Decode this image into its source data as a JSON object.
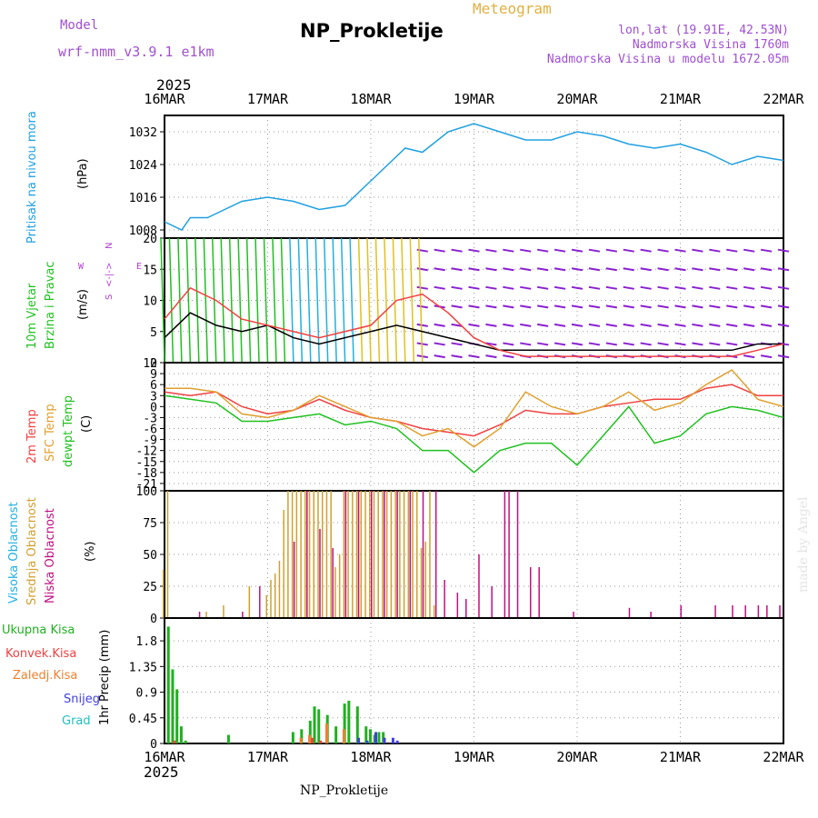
{
  "header": {
    "model_label": "Model",
    "model_name": "wrf-nmm_v3.9.1  e1km",
    "site_name": "NP_Prokletije",
    "product": "Meteogram",
    "lonlat": "lon,lat (19.91E, 42.53N)",
    "elevation": "Nadmorska Visina 1760m",
    "model_elevation": "Nadmorska Visina u modelu 1672.05m"
  },
  "footer": {
    "site_name": "NP_Prokletije",
    "credit": "made by Angel"
  },
  "time_axis": {
    "year": "2025",
    "ticks": [
      "16MAR",
      "17MAR",
      "18MAR",
      "19MAR",
      "20MAR",
      "21MAR",
      "22MAR"
    ]
  },
  "colors": {
    "pressure": "#20a0e0",
    "temp2m": "#f04040",
    "sfc_temp": "#e0a030",
    "dewpoint": "#20c020",
    "cloud_high": "#20b0e0",
    "cloud_mid": "#d0a030",
    "cloud_low": "#c01080",
    "precip_total": "#20b020",
    "precip_conv": "#f04040",
    "precip_frozen": "#f08030",
    "precip_snow": "#4040e0",
    "precip_hail": "#20c0c0",
    "wind_speed": "#000000",
    "wind_gust": "#f04040"
  },
  "panel_titles": {
    "pressure": [
      "Pritisak na nivou mora",
      "(hPa)"
    ],
    "wind": [
      "10m Vjetar",
      "Brzina i Pravac",
      "(m/s)"
    ],
    "compass": [
      "N",
      "<-|->",
      "S",
      "W",
      "E"
    ],
    "temp": [
      "2m Temp",
      "SFC Temp",
      "dewpt Temp",
      "(C)"
    ],
    "cloud": [
      "Visoka Oblacnost",
      "Srednja Oblacnost",
      "Niska Oblacnost",
      "(%)"
    ],
    "precip": [
      "Ukupna Kisa",
      "Konvek.Kisa",
      "Zaledj.Kisa",
      "Snijeg",
      "Grad",
      "1hr Precip (mm)"
    ]
  },
  "chart_data": [
    {
      "type": "line",
      "panel": "pressure",
      "ylabel": "(hPa)",
      "ylim": [
        1006,
        1036
      ],
      "yticks": [
        1008,
        1016,
        1024,
        1032
      ],
      "x_unit": "hours since 16MAR 00Z",
      "grid": true,
      "series": [
        {
          "name": "Pritisak na nivou mora",
          "x": [
            0,
            4,
            6,
            10,
            14,
            18,
            24,
            30,
            36,
            42,
            48,
            52,
            56,
            60,
            66,
            72,
            78,
            84,
            90,
            96,
            102,
            108,
            114,
            120,
            126,
            132,
            138,
            144
          ],
          "y": [
            1010,
            1008,
            1011,
            1011,
            1013,
            1015,
            1016,
            1015,
            1013,
            1014,
            1020,
            1024,
            1028,
            1027,
            1032,
            1034,
            1032,
            1030,
            1030,
            1032,
            1031,
            1029,
            1028,
            1029,
            1027,
            1024,
            1026,
            1025
          ]
        }
      ]
    },
    {
      "type": "line",
      "panel": "wind",
      "ylabel": "(m/s)",
      "ylim": [
        0,
        20
      ],
      "yticks": [
        0,
        5,
        10,
        15,
        20
      ],
      "x_unit": "hours since 16MAR 00Z",
      "grid": true,
      "series": [
        {
          "name": "speed",
          "x": [
            0,
            6,
            12,
            18,
            24,
            30,
            36,
            42,
            48,
            54,
            60,
            66,
            72,
            78,
            84,
            90,
            96,
            102,
            108,
            114,
            120,
            126,
            132,
            138,
            144
          ],
          "y": [
            4,
            8,
            6,
            5,
            6,
            4,
            3,
            4,
            5,
            6,
            5,
            4,
            3,
            2,
            2,
            2,
            2,
            2,
            2,
            2,
            2,
            2,
            2,
            3,
            3
          ]
        },
        {
          "name": "gust",
          "x": [
            0,
            6,
            12,
            18,
            24,
            30,
            36,
            42,
            48,
            54,
            60,
            66,
            72,
            78,
            84,
            90,
            96,
            102,
            108,
            114,
            120,
            126,
            132,
            138,
            144
          ],
          "y": [
            7,
            12,
            10,
            7,
            6,
            5,
            4,
            5,
            6,
            10,
            11,
            8,
            4,
            2,
            1,
            1,
            1,
            1,
            1,
            1,
            1,
            1,
            1,
            2,
            3
          ]
        }
      ],
      "barb_rows": [
        {
          "y": 1,
          "color": "#8a20d0"
        },
        {
          "y": 3,
          "color": "#8a20d0"
        },
        {
          "y": 6,
          "color": "#8a20d0"
        },
        {
          "y": 9,
          "color": "#8a20d0"
        },
        {
          "y": 12,
          "color": "#8a20d0"
        },
        {
          "y": 15,
          "color": "#8a20d0"
        },
        {
          "y": 18,
          "color": "#8a20d0"
        }
      ]
    },
    {
      "type": "line",
      "panel": "temp",
      "ylabel": "(C)",
      "ylim": [
        -23,
        12
      ],
      "yticks": [
        -21,
        -18,
        -15,
        -12,
        -9,
        -6,
        -3,
        0,
        3,
        6,
        9,
        12
      ],
      "x_unit": "hours since 16MAR 00Z",
      "grid": true,
      "series": [
        {
          "name": "2m Temp",
          "x": [
            0,
            6,
            12,
            18,
            24,
            30,
            36,
            42,
            48,
            54,
            60,
            66,
            72,
            78,
            84,
            90,
            96,
            102,
            108,
            114,
            120,
            126,
            132,
            138,
            144
          ],
          "y": [
            4,
            3,
            4,
            0,
            -2,
            -1,
            2,
            -1,
            -3,
            -4,
            -6,
            -7,
            -8,
            -5,
            -1,
            -2,
            -2,
            0,
            1,
            2,
            2,
            5,
            6,
            3,
            3
          ]
        },
        {
          "name": "SFC Temp",
          "x": [
            0,
            6,
            12,
            18,
            24,
            30,
            36,
            42,
            48,
            54,
            60,
            66,
            72,
            78,
            84,
            90,
            96,
            102,
            108,
            114,
            120,
            126,
            132,
            138,
            144
          ],
          "y": [
            5,
            5,
            4,
            -2,
            -3,
            -1,
            3,
            0,
            -3,
            -4,
            -8,
            -6,
            -11,
            -6,
            4,
            0,
            -2,
            0,
            4,
            -1,
            1,
            6,
            10,
            2,
            0
          ]
        },
        {
          "name": "dewpt Temp",
          "x": [
            0,
            6,
            12,
            18,
            24,
            30,
            36,
            42,
            48,
            54,
            60,
            66,
            72,
            78,
            84,
            90,
            96,
            102,
            108,
            114,
            120,
            126,
            132,
            138,
            144
          ],
          "y": [
            3,
            2,
            1,
            -4,
            -4,
            -3,
            -2,
            -5,
            -4,
            -6,
            -12,
            -12,
            -18,
            -12,
            -10,
            -10,
            -16,
            -8,
            0,
            -10,
            -8,
            -2,
            0,
            -1,
            -3
          ]
        }
      ]
    },
    {
      "type": "bar",
      "panel": "cloud",
      "ylabel": "(%)",
      "ylim": [
        0,
        100
      ],
      "yticks": [
        0,
        25,
        50,
        75,
        100
      ],
      "x_unit": "hours since 16MAR 00Z",
      "grid": true,
      "series": [
        {
          "name": "Srednja Oblacnost",
          "x": [
            0,
            1,
            10,
            14,
            20,
            24,
            25,
            26,
            27,
            28,
            29,
            30,
            31,
            32,
            33,
            34,
            35,
            36,
            37,
            38,
            39,
            40,
            41,
            42,
            43,
            44,
            45,
            46,
            47,
            48,
            49,
            50,
            51,
            52,
            53,
            54,
            55,
            56,
            57,
            58,
            59,
            60,
            61,
            62,
            63
          ],
          "y": [
            38,
            100,
            5,
            10,
            25,
            18,
            30,
            35,
            45,
            85,
            100,
            100,
            100,
            100,
            100,
            100,
            100,
            100,
            100,
            100,
            100,
            40,
            50,
            100,
            100,
            100,
            100,
            100,
            100,
            100,
            100,
            100,
            100,
            100,
            100,
            100,
            100,
            100,
            100,
            100,
            100,
            55,
            60,
            100,
            10
          ]
        },
        {
          "name": "Niska Oblacnost",
          "x": [
            8,
            18,
            22,
            30,
            33,
            36,
            39,
            42,
            45,
            48,
            51,
            54,
            57,
            60,
            63,
            65,
            68,
            70,
            73,
            76,
            79,
            80,
            82,
            85,
            87,
            95,
            108,
            113,
            120,
            128,
            132,
            135,
            138,
            140,
            143
          ],
          "y": [
            5,
            5,
            25,
            60,
            100,
            70,
            55,
            100,
            100,
            100,
            100,
            100,
            100,
            100,
            100,
            30,
            20,
            15,
            50,
            25,
            100,
            100,
            100,
            40,
            40,
            5,
            8,
            5,
            10,
            10,
            10,
            10,
            10,
            10,
            10
          ]
        }
      ]
    },
    {
      "type": "bar",
      "panel": "precip",
      "ylabel": "1hr Precip (mm)",
      "ylim": [
        0,
        2.2
      ],
      "yticks": [
        0,
        0.45,
        0.9,
        1.35,
        1.8
      ],
      "x_unit": "hours since 16MAR 00Z",
      "grid": true,
      "series": [
        {
          "name": "Ukupna Kisa",
          "x": [
            1,
            2,
            3,
            4,
            5,
            15,
            30,
            32,
            34,
            35,
            36,
            38,
            40,
            42,
            43,
            45,
            47,
            48,
            49,
            50,
            51
          ],
          "y": [
            2.05,
            1.3,
            0.95,
            0.3,
            0.05,
            0.15,
            0.2,
            0.25,
            0.4,
            0.65,
            0.6,
            0.5,
            0.3,
            0.7,
            0.75,
            0.65,
            0.3,
            0.25,
            0.15,
            0.2,
            0.2
          ]
        },
        {
          "name": "Konvek.Kisa",
          "x": [
            2,
            34,
            36
          ],
          "y": [
            0.05,
            0.1,
            0.05
          ]
        },
        {
          "name": "Zaledj.Kisa",
          "x": [
            31,
            33,
            37,
            41
          ],
          "y": [
            0.1,
            0.15,
            0.35,
            0.25
          ]
        },
        {
          "name": "Snijeg",
          "x": [
            44,
            46,
            48,
            50,
            52,
            53
          ],
          "y": [
            0.1,
            0.05,
            0.2,
            0.1,
            0.1,
            0.05
          ]
        },
        {
          "name": "Grad",
          "x": [],
          "y": []
        }
      ]
    }
  ]
}
